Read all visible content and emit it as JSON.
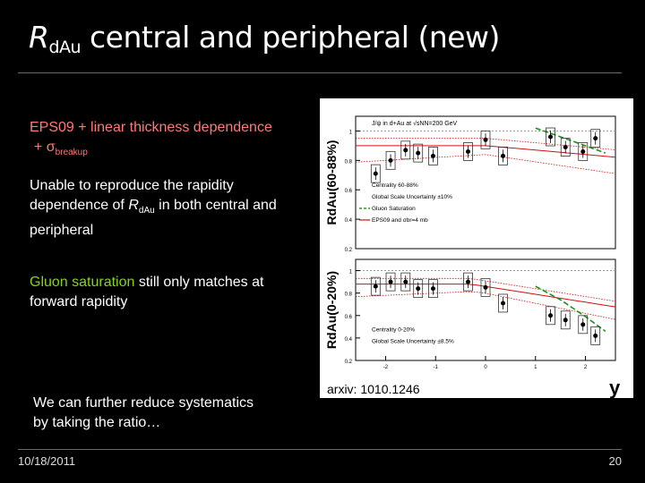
{
  "slide": {
    "title_main": "R",
    "title_sub": "dAu",
    "title_rest": " central and peripheral (new)",
    "bullet1_line1": "EPS09 + linear thickness dependence",
    "bullet1_line2_plus": "+ σ",
    "bullet1_line2_sub": "breakup",
    "bullet2_a": "Unable to reproduce the rapidity",
    "bullet2_b": "dependence of ",
    "bullet2_r": "R",
    "bullet2_rsub": "dAu",
    "bullet2_c": " in both central and",
    "bullet2_d": "peripheral",
    "bullet3_green": "Gluon saturation",
    "bullet3_rest": " still only matches at",
    "bullet3_line2": "forward rapidity",
    "bullet4_line1": "We can further reduce systematics",
    "bullet4_line2": "by taking the ratio…",
    "arxiv": "arxiv: 1010.1246",
    "date": "10/18/2011",
    "page": "20"
  },
  "colors": {
    "text_red": "#ff7a7a",
    "text_green": "#86d31f",
    "model_red": "#d01010",
    "saturation_green": "#1a8f1a"
  },
  "chart_data": [
    {
      "type": "scatter",
      "title": "J/ψ in d+Au at √sNN=200 GeV",
      "ylabel": "RdAu(60-88%)",
      "ylim": [
        0.2,
        1.1
      ],
      "xlim": [
        -2.6,
        2.6
      ],
      "yticks": [
        "0.2",
        "0.4",
        "0.6",
        "0.8",
        "1"
      ],
      "legend": [
        "Centrality 60-88%",
        "Global Scale Uncertainty ±10%",
        "Gluon Saturation",
        "EPS09 and σbr=4 mb"
      ],
      "x": [
        -2.2,
        -1.9,
        -1.6,
        -1.35,
        -1.05,
        -0.35,
        0.0,
        0.35,
        1.3,
        1.6,
        1.95,
        2.2
      ],
      "y": [
        0.71,
        0.8,
        0.87,
        0.85,
        0.83,
        0.86,
        0.94,
        0.83,
        0.96,
        0.89,
        0.86,
        0.95
      ],
      "saturation": {
        "x": [
          1.0,
          1.5,
          2.0,
          2.4
        ],
        "y": [
          1.02,
          0.96,
          0.9,
          0.85
        ]
      }
    },
    {
      "type": "scatter",
      "ylabel": "RdAu(0-20%)",
      "xlabel": "y",
      "ylim": [
        0.2,
        1.1
      ],
      "xlim": [
        -2.6,
        2.6
      ],
      "yticks": [
        "0.2",
        "0.4",
        "0.6",
        "0.8",
        "1"
      ],
      "xticks": [
        "-2",
        "-1",
        "0",
        "1",
        "2"
      ],
      "legend": [
        "Centrality 0-20%",
        "Global Scale Uncertainty ±8.5%"
      ],
      "x": [
        -2.2,
        -1.9,
        -1.6,
        -1.35,
        -1.05,
        -0.35,
        0.0,
        0.35,
        1.3,
        1.6,
        1.95,
        2.2
      ],
      "y": [
        0.86,
        0.9,
        0.9,
        0.84,
        0.84,
        0.9,
        0.85,
        0.71,
        0.6,
        0.56,
        0.52,
        0.42
      ],
      "saturation": {
        "x": [
          1.0,
          1.5,
          2.0,
          2.4
        ],
        "y": [
          0.86,
          0.74,
          0.59,
          0.46
        ]
      }
    }
  ]
}
